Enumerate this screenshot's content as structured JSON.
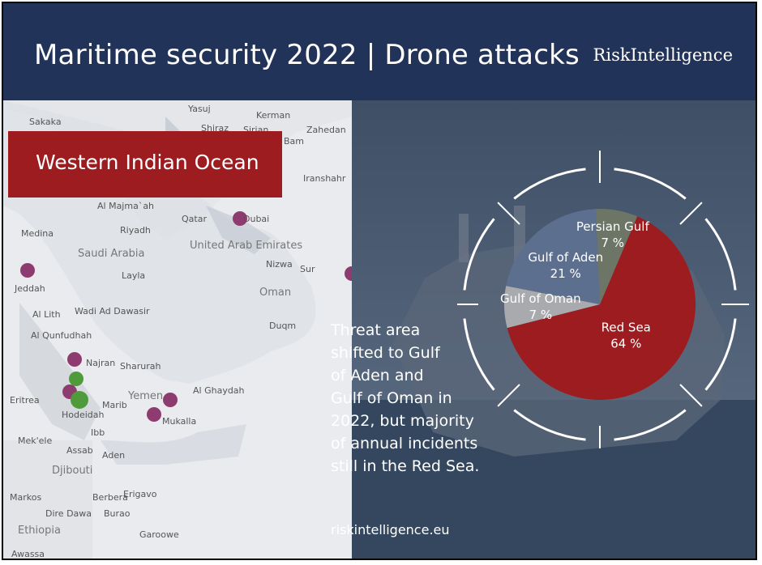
{
  "header": {
    "title": "Maritime security 2022 | Drone attacks",
    "brand": "RiskIntelligence"
  },
  "banner": {
    "label": "Western Indian Ocean"
  },
  "note": {
    "lines": [
      "Threat area",
      "shifted to Gulf",
      "of Aden and",
      "Gulf of Oman in",
      "2022, but majority",
      "of annual incidents",
      "still in the Red Sea."
    ]
  },
  "url": "riskintelligence.eu",
  "map": {
    "places": [
      "Yasuj",
      "Kerman",
      "Sakaka",
      "Shiraz",
      "Sirjan",
      "Bam",
      "Zahedan",
      "Iranshahr",
      "Al Majma`ah",
      "Qatar",
      "Dubai",
      "Medina",
      "Riyadh",
      "United Arab Emirates",
      "Saudi Arabia",
      "Nizwa",
      "Sur",
      "Layla",
      "Oman",
      "Jeddah",
      "Al Lith",
      "Wadi Ad Dawasir",
      "Duqm",
      "Al Qunfudhah",
      "Najran",
      "Sharurah",
      "Eritrea",
      "Yemen",
      "Al Ghaydah",
      "Marib",
      "Hodeidah",
      "Mukalla",
      "Ibb",
      "Mek'ele",
      "Assab",
      "Aden",
      "Djibouti",
      "Markos",
      "Berbera",
      "Erigavo",
      "Dire Dawa",
      "Burao",
      "Ethiopia",
      "Garoowe",
      "Awassa"
    ],
    "marker_colors": {
      "purple": "#8e3c70",
      "green": "#4f9a3a"
    }
  },
  "chart_data": {
    "type": "pie",
    "title": "",
    "slices": [
      {
        "name": "Red Sea",
        "value": 64,
        "label": "64 %",
        "color": "#9c1c20"
      },
      {
        "name": "Gulf of Oman",
        "value": 7,
        "label": "7 %",
        "color": "#a8aaad"
      },
      {
        "name": "Gulf of Aden",
        "value": 21,
        "label": "21 %",
        "color": "#5d6f8f"
      },
      {
        "name": "Persian Gulf",
        "value": 7,
        "label": "7 %",
        "color": "#6d7567"
      }
    ],
    "legend": "none"
  }
}
